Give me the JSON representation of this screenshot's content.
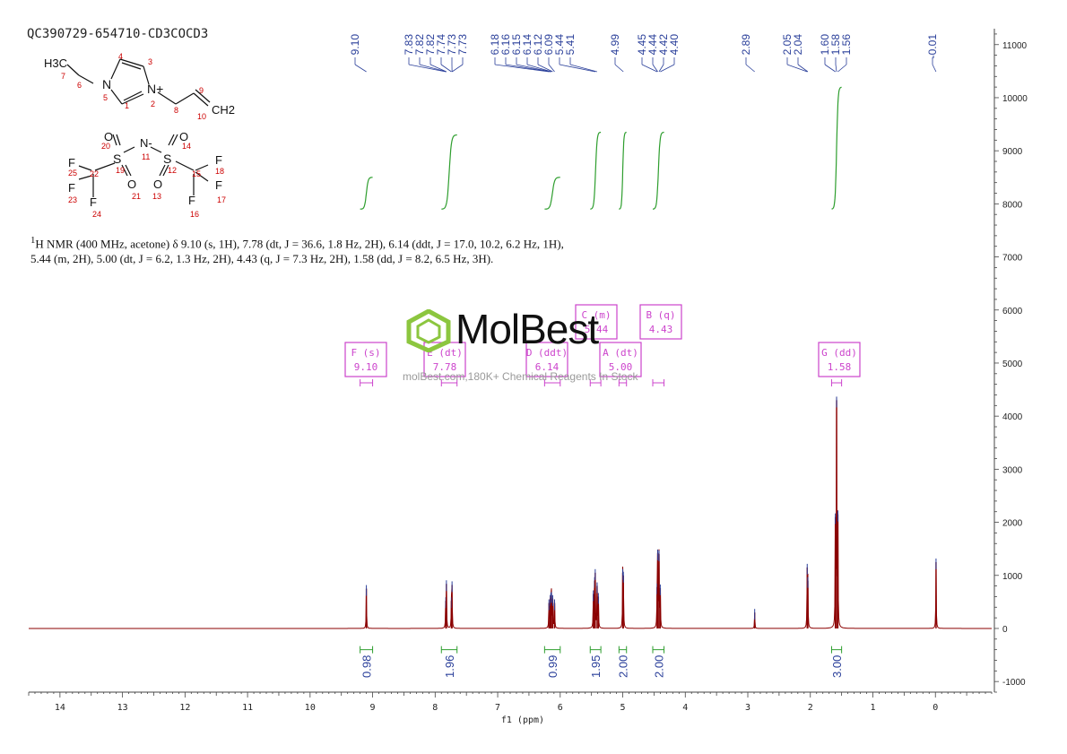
{
  "sample_id": "QC390729-654710-CD3COCD3",
  "nmr_text": {
    "pre": "H NMR (400 MHz, acetone) δ 9.10 (s, 1H), 7.78 (dt, J = 36.6, 1.8 Hz, 2H), 6.14 (ddt, J = 17.0, 10.2, 6.2 Hz, 1H), 5.44 (m, 2H), 5.00 (dt, J = 6.2, 1.3 Hz, 2H), 4.43 (q, J = 7.3 Hz, 2H), 1.58 (dd, J = 8.2, 6.5 Hz, 3H).",
    "superscript": "1"
  },
  "watermark": {
    "brand": "MolBest",
    "sub": "molBest.com,180K+ Chemical Reagents In Stock"
  },
  "colors": {
    "spectrum": "#8b0000",
    "integral": "#2e9e2e",
    "peak_label": "#2a3f9a",
    "multiplet_box": "#cc44cc",
    "axis": "#444444"
  },
  "structure": {
    "atoms": [
      "H3C",
      "7",
      "6",
      "N",
      "5",
      "4",
      "3",
      "1",
      "N+",
      "2",
      "8",
      "9",
      "10",
      "CH2",
      "O",
      "O",
      "N-",
      "11",
      "20",
      "14",
      "S",
      "S",
      "19",
      "12",
      "F",
      "F",
      "25",
      "22",
      "15",
      "18",
      "F",
      "F",
      "F",
      "F",
      "O",
      "O",
      "23",
      "21",
      "13",
      "17",
      "24",
      "16"
    ]
  },
  "chart_data": {
    "type": "line",
    "title": "",
    "xlabel": "f1 (ppm)",
    "ylabel": "",
    "xlim": [
      14.5,
      -0.9
    ],
    "ylim": [
      -1200,
      11300
    ],
    "x_ticks": [
      14,
      13,
      12,
      11,
      10,
      9,
      8,
      7,
      6,
      5,
      4,
      3,
      2,
      1,
      0
    ],
    "y_ticks": [
      -1000,
      0,
      1000,
      2000,
      3000,
      4000,
      5000,
      6000,
      7000,
      8000,
      9000,
      10000,
      11000
    ],
    "peak_labels": [
      {
        "group": [
          9.1
        ],
        "labels": [
          "9.10"
        ]
      },
      {
        "group": [
          7.83,
          7.82,
          7.82,
          7.74,
          7.73,
          7.73
        ],
        "labels": [
          "7.83",
          "7.82",
          "7.82",
          "7.74",
          "7.73",
          "7.73"
        ]
      },
      {
        "group": [
          6.18,
          6.16,
          6.15,
          6.14,
          6.12,
          6.09,
          5.44,
          5.41
        ],
        "labels": [
          "6.18",
          "6.16",
          "6.15",
          "6.14",
          "6.12",
          "6.09",
          "5.44",
          "5.41"
        ]
      },
      {
        "group": [
          4.99
        ],
        "labels": [
          "4.99"
        ]
      },
      {
        "group": [
          4.45,
          4.44,
          4.42,
          4.4
        ],
        "labels": [
          "4.45",
          "4.44",
          "4.42",
          "4.40"
        ]
      },
      {
        "group": [
          2.89
        ],
        "labels": [
          "2.89"
        ]
      },
      {
        "group": [
          2.05,
          2.04
        ],
        "labels": [
          "2.05",
          "2.04"
        ]
      },
      {
        "group": [
          1.6,
          1.58,
          1.56
        ],
        "labels": [
          "1.60",
          "1.58",
          "1.56"
        ]
      },
      {
        "group": [
          -0.01
        ],
        "labels": [
          "-0.01"
        ]
      }
    ],
    "peaks": [
      {
        "ppm": 9.1,
        "height": 750
      },
      {
        "ppm": 7.83,
        "height": 520
      },
      {
        "ppm": 7.82,
        "height": 840
      },
      {
        "ppm": 7.74,
        "height": 520
      },
      {
        "ppm": 7.73,
        "height": 820
      },
      {
        "ppm": 6.18,
        "height": 480
      },
      {
        "ppm": 6.16,
        "height": 560
      },
      {
        "ppm": 6.15,
        "height": 600
      },
      {
        "ppm": 6.14,
        "height": 620
      },
      {
        "ppm": 6.12,
        "height": 560
      },
      {
        "ppm": 6.09,
        "height": 480
      },
      {
        "ppm": 5.47,
        "height": 650
      },
      {
        "ppm": 5.45,
        "height": 900
      },
      {
        "ppm": 5.44,
        "height": 1050
      },
      {
        "ppm": 5.41,
        "height": 800
      },
      {
        "ppm": 5.39,
        "height": 600
      },
      {
        "ppm": 5.0,
        "height": 1050
      },
      {
        "ppm": 4.99,
        "height": 1000
      },
      {
        "ppm": 4.45,
        "height": 780
      },
      {
        "ppm": 4.44,
        "height": 1420
      },
      {
        "ppm": 4.42,
        "height": 1400
      },
      {
        "ppm": 4.4,
        "height": 760
      },
      {
        "ppm": 2.89,
        "height": 300
      },
      {
        "ppm": 2.05,
        "height": 1150
      },
      {
        "ppm": 2.04,
        "height": 900
      },
      {
        "ppm": 1.6,
        "height": 2100
      },
      {
        "ppm": 1.58,
        "height": 4300
      },
      {
        "ppm": 1.56,
        "height": 2150
      },
      {
        "ppm": -0.01,
        "height": 1250
      }
    ],
    "integrals": [
      {
        "from": 9.2,
        "to": 9.0,
        "value": "0.98",
        "y_low": 7900,
        "y_high": 8500
      },
      {
        "from": 7.9,
        "to": 7.65,
        "value": "1.96",
        "y_low": 7900,
        "y_high": 9300
      },
      {
        "from": 6.25,
        "to": 6.0,
        "value": "0.99",
        "y_low": 7900,
        "y_high": 8500
      },
      {
        "from": 5.52,
        "to": 5.35,
        "value": "1.95",
        "y_low": 7900,
        "y_high": 9350
      },
      {
        "from": 5.06,
        "to": 4.94,
        "value": "2.00",
        "y_low": 7900,
        "y_high": 9350
      },
      {
        "from": 4.52,
        "to": 4.34,
        "value": "2.00",
        "y_low": 7900,
        "y_high": 9350
      },
      {
        "from": 1.66,
        "to": 1.5,
        "value": "3.00",
        "y_low": 7900,
        "y_high": 10200
      }
    ],
    "multiplets": [
      {
        "label": "F (s)",
        "shift": "9.10",
        "from": 9.2,
        "to": 9.0
      },
      {
        "label": "E (dt)",
        "shift": "7.78",
        "from": 7.9,
        "to": 7.65
      },
      {
        "label": "D (ddt)",
        "shift": "6.14",
        "from": 6.25,
        "to": 6.0
      },
      {
        "label": "C (m)",
        "shift": "5.44",
        "from": 5.52,
        "to": 5.35
      },
      {
        "label": "A (dt)",
        "shift": "5.00",
        "from": 5.06,
        "to": 4.94
      },
      {
        "label": "B (q)",
        "shift": "4.43",
        "from": 4.52,
        "to": 4.34
      },
      {
        "label": "G (dd)",
        "shift": "1.58",
        "from": 1.66,
        "to": 1.5
      }
    ]
  }
}
